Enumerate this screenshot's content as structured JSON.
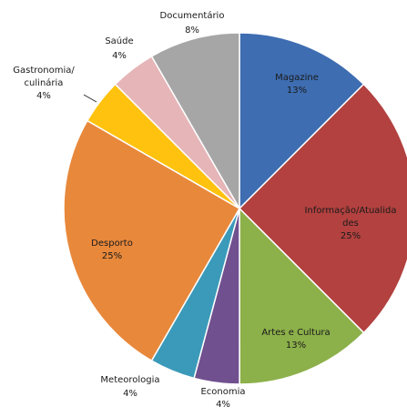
{
  "chart_data": {
    "type": "pie",
    "slices": [
      {
        "label": "Magazine",
        "pct_label": "13%",
        "value": 12.5,
        "color": "#3e6db1"
      },
      {
        "label": "Informação/Atualidades",
        "label_lines": [
          "Informação/Atualida",
          "des"
        ],
        "pct_label": "25%",
        "value": 25,
        "color": "#b2413f"
      },
      {
        "label": "Artes e Cultura",
        "pct_label": "13%",
        "value": 12.5,
        "color": "#8cb04a"
      },
      {
        "label": "Economia",
        "pct_label": "4%",
        "value": 4.17,
        "color": "#70508f"
      },
      {
        "label": "Meteorologia",
        "pct_label": "4%",
        "value": 4.17,
        "color": "#3b9ab9"
      },
      {
        "label": "Desporto",
        "pct_label": "25%",
        "value": 25,
        "color": "#e8883b"
      },
      {
        "label": "Gastronomia/culinária",
        "label_lines": [
          "Gastronomia/",
          "culinária"
        ],
        "pct_label": "4%",
        "value": 4.17,
        "color": "#ffc20e"
      },
      {
        "label": "Saúde",
        "pct_label": "4%",
        "value": 4.17,
        "color": "#e6b5b8"
      },
      {
        "label": "Documentário",
        "pct_label": "8%",
        "value": 8.33,
        "color": "#a6a6a6"
      }
    ],
    "start_angle_deg": 0,
    "direction": "clockwise",
    "title": "",
    "legend": "none"
  }
}
